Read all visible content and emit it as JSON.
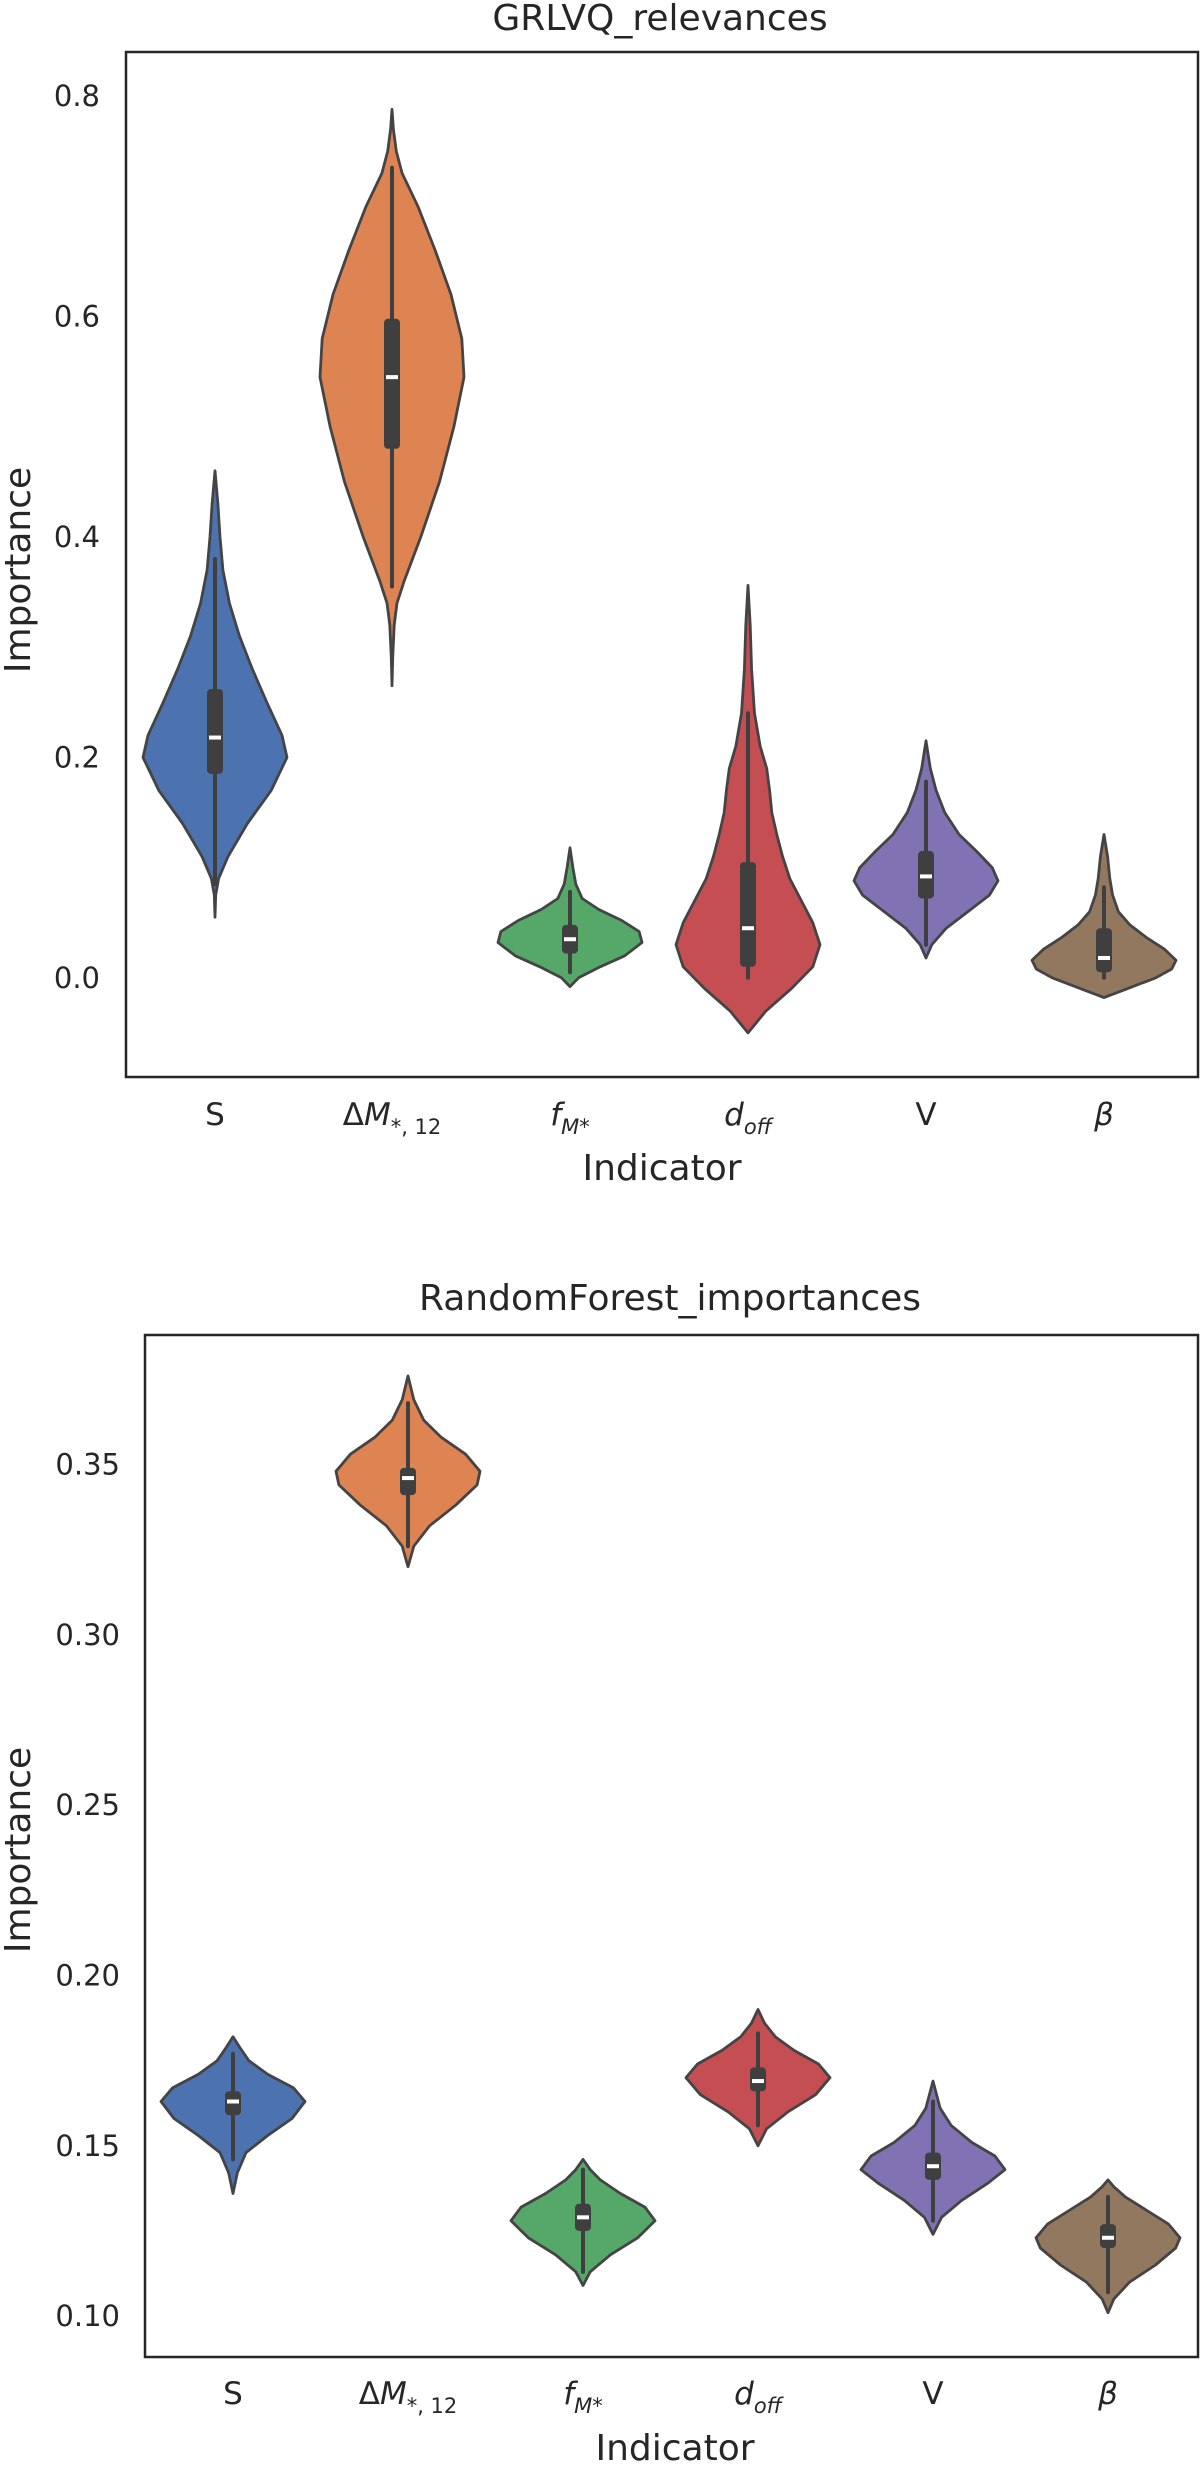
{
  "chart_data": [
    {
      "type": "violin",
      "title": "GRLVQ_relevances",
      "xlabel": "Indicator",
      "ylabel": "Importance",
      "ylim": [
        -0.09,
        0.84
      ],
      "yticks": [
        0.0,
        0.2,
        0.4,
        0.6,
        0.8
      ],
      "ytick_labels": [
        "0.0",
        "0.2",
        "0.4",
        "0.6",
        "0.8"
      ],
      "categories": [
        {
          "label": "S",
          "sub": "",
          "color": "#4c72b0",
          "kde_min": 0.055,
          "kde_max": 0.46,
          "shape": [
            [
              0.055,
              0
            ],
            [
              0.075,
              0.01
            ],
            [
              0.09,
              0.05
            ],
            [
              0.11,
              0.18
            ],
            [
              0.14,
              0.45
            ],
            [
              0.17,
              0.78
            ],
            [
              0.2,
              1.0
            ],
            [
              0.22,
              0.93
            ],
            [
              0.25,
              0.72
            ],
            [
              0.28,
              0.52
            ],
            [
              0.31,
              0.34
            ],
            [
              0.34,
              0.2
            ],
            [
              0.37,
              0.11
            ],
            [
              0.4,
              0.07
            ],
            [
              0.43,
              0.04
            ],
            [
              0.46,
              0
            ]
          ],
          "whisker": [
            0.085,
            0.38
          ],
          "q1": 0.185,
          "median": 0.218,
          "q3": 0.262
        },
        {
          "label": "ΔM",
          "sub": "*, 12",
          "color": "#dd8452",
          "kde_min": 0.265,
          "kde_max": 0.788,
          "shape": [
            [
              0.265,
              0
            ],
            [
              0.29,
              0.01
            ],
            [
              0.32,
              0.03
            ],
            [
              0.34,
              0.07
            ],
            [
              0.36,
              0.17
            ],
            [
              0.4,
              0.4
            ],
            [
              0.45,
              0.66
            ],
            [
              0.5,
              0.86
            ],
            [
              0.545,
              1.0
            ],
            [
              0.58,
              0.97
            ],
            [
              0.62,
              0.82
            ],
            [
              0.66,
              0.6
            ],
            [
              0.7,
              0.36
            ],
            [
              0.73,
              0.14
            ],
            [
              0.75,
              0.06
            ],
            [
              0.77,
              0.02
            ],
            [
              0.788,
              0
            ]
          ],
          "whisker": [
            0.355,
            0.735
          ],
          "q1": 0.48,
          "median": 0.545,
          "q3": 0.598
        },
        {
          "label": "f",
          "sub": "M*",
          "color": "#55a868",
          "kde_min": -0.008,
          "kde_max": 0.118,
          "shape": [
            [
              -0.008,
              0
            ],
            [
              0.0,
              0.12
            ],
            [
              0.01,
              0.42
            ],
            [
              0.02,
              0.76
            ],
            [
              0.032,
              1.0
            ],
            [
              0.042,
              0.96
            ],
            [
              0.052,
              0.72
            ],
            [
              0.062,
              0.4
            ],
            [
              0.072,
              0.17
            ],
            [
              0.085,
              0.08
            ],
            [
              0.1,
              0.04
            ],
            [
              0.118,
              0
            ]
          ],
          "whisker": [
            0.005,
            0.078
          ],
          "q1": 0.022,
          "median": 0.035,
          "q3": 0.048
        },
        {
          "label": "d",
          "sub": "off",
          "color": "#c44e52",
          "kde_min": -0.05,
          "kde_max": 0.356,
          "shape": [
            [
              -0.05,
              0
            ],
            [
              -0.03,
              0.25
            ],
            [
              -0.01,
              0.6
            ],
            [
              0.01,
              0.9
            ],
            [
              0.03,
              1.0
            ],
            [
              0.05,
              0.9
            ],
            [
              0.07,
              0.74
            ],
            [
              0.09,
              0.58
            ],
            [
              0.11,
              0.48
            ],
            [
              0.13,
              0.4
            ],
            [
              0.15,
              0.33
            ],
            [
              0.17,
              0.3
            ],
            [
              0.19,
              0.26
            ],
            [
              0.21,
              0.17
            ],
            [
              0.24,
              0.09
            ],
            [
              0.28,
              0.05
            ],
            [
              0.32,
              0.03
            ],
            [
              0.356,
              0
            ]
          ],
          "whisker": [
            0.0,
            0.24
          ],
          "q1": 0.01,
          "median": 0.045,
          "q3": 0.105
        },
        {
          "label": "V",
          "sub": "",
          "color": "#8172b3",
          "kde_min": 0.018,
          "kde_max": 0.215,
          "shape": [
            [
              0.018,
              0
            ],
            [
              0.03,
              0.08
            ],
            [
              0.045,
              0.28
            ],
            [
              0.06,
              0.58
            ],
            [
              0.075,
              0.88
            ],
            [
              0.088,
              1.0
            ],
            [
              0.1,
              0.92
            ],
            [
              0.115,
              0.7
            ],
            [
              0.13,
              0.46
            ],
            [
              0.15,
              0.26
            ],
            [
              0.17,
              0.14
            ],
            [
              0.19,
              0.06
            ],
            [
              0.215,
              0
            ]
          ],
          "whisker": [
            0.03,
            0.178
          ],
          "q1": 0.072,
          "median": 0.092,
          "q3": 0.115
        },
        {
          "label": "β",
          "sub": "",
          "color": "#937860",
          "kde_min": -0.018,
          "kde_max": 0.13,
          "shape": [
            [
              -0.018,
              0
            ],
            [
              -0.01,
              0.32
            ],
            [
              0.0,
              0.72
            ],
            [
              0.008,
              0.94
            ],
            [
              0.016,
              1.0
            ],
            [
              0.026,
              0.84
            ],
            [
              0.036,
              0.6
            ],
            [
              0.048,
              0.36
            ],
            [
              0.06,
              0.2
            ],
            [
              0.075,
              0.12
            ],
            [
              0.09,
              0.08
            ],
            [
              0.11,
              0.05
            ],
            [
              0.13,
              0
            ]
          ],
          "whisker": [
            0.0,
            0.082
          ],
          "q1": 0.005,
          "median": 0.018,
          "q3": 0.045
        }
      ]
    },
    {
      "type": "violin",
      "title": "RandomForest_importances",
      "xlabel": "Indicator",
      "ylabel": "Importance",
      "ylim": [
        0.088,
        0.388
      ],
      "yticks": [
        0.1,
        0.15,
        0.2,
        0.25,
        0.3,
        0.35
      ],
      "ytick_labels": [
        "0.10",
        "0.15",
        "0.20",
        "0.25",
        "0.30",
        "0.35"
      ],
      "categories": [
        {
          "label": "S",
          "sub": "",
          "color": "#4c72b0",
          "kde_min": 0.136,
          "kde_max": 0.182,
          "shape": [
            [
              0.136,
              0
            ],
            [
              0.142,
              0.06
            ],
            [
              0.148,
              0.18
            ],
            [
              0.153,
              0.48
            ],
            [
              0.158,
              0.82
            ],
            [
              0.163,
              1.0
            ],
            [
              0.167,
              0.84
            ],
            [
              0.171,
              0.48
            ],
            [
              0.175,
              0.22
            ],
            [
              0.179,
              0.09
            ],
            [
              0.182,
              0
            ]
          ],
          "whisker": [
            0.146,
            0.177
          ],
          "q1": 0.159,
          "median": 0.163,
          "q3": 0.166
        },
        {
          "label": "ΔM",
          "sub": "*, 12",
          "color": "#dd8452",
          "kde_min": 0.32,
          "kde_max": 0.376,
          "shape": [
            [
              0.32,
              0
            ],
            [
              0.326,
              0.08
            ],
            [
              0.332,
              0.3
            ],
            [
              0.338,
              0.66
            ],
            [
              0.344,
              0.96
            ],
            [
              0.348,
              1.0
            ],
            [
              0.353,
              0.8
            ],
            [
              0.358,
              0.46
            ],
            [
              0.363,
              0.22
            ],
            [
              0.369,
              0.08
            ],
            [
              0.376,
              0
            ]
          ],
          "whisker": [
            0.326,
            0.368
          ],
          "q1": 0.341,
          "median": 0.346,
          "q3": 0.349
        },
        {
          "label": "f",
          "sub": "M*",
          "color": "#55a868",
          "kde_min": 0.109,
          "kde_max": 0.146,
          "shape": [
            [
              0.109,
              0
            ],
            [
              0.113,
              0.1
            ],
            [
              0.118,
              0.38
            ],
            [
              0.123,
              0.76
            ],
            [
              0.128,
              1.0
            ],
            [
              0.132,
              0.86
            ],
            [
              0.136,
              0.52
            ],
            [
              0.14,
              0.24
            ],
            [
              0.143,
              0.1
            ],
            [
              0.146,
              0
            ]
          ],
          "whisker": [
            0.113,
            0.143
          ],
          "q1": 0.125,
          "median": 0.129,
          "q3": 0.133
        },
        {
          "label": "d",
          "sub": "off",
          "color": "#c44e52",
          "kde_min": 0.15,
          "kde_max": 0.19,
          "shape": [
            [
              0.15,
              0
            ],
            [
              0.155,
              0.12
            ],
            [
              0.16,
              0.42
            ],
            [
              0.165,
              0.8
            ],
            [
              0.17,
              1.0
            ],
            [
              0.174,
              0.84
            ],
            [
              0.178,
              0.5
            ],
            [
              0.182,
              0.24
            ],
            [
              0.186,
              0.09
            ],
            [
              0.19,
              0
            ]
          ],
          "whisker": [
            0.156,
            0.183
          ],
          "q1": 0.166,
          "median": 0.169,
          "q3": 0.173
        },
        {
          "label": "V",
          "sub": "",
          "color": "#8172b3",
          "kde_min": 0.124,
          "kde_max": 0.169,
          "shape": [
            [
              0.124,
              0
            ],
            [
              0.129,
              0.12
            ],
            [
              0.134,
              0.4
            ],
            [
              0.139,
              0.76
            ],
            [
              0.143,
              1.0
            ],
            [
              0.147,
              0.86
            ],
            [
              0.151,
              0.54
            ],
            [
              0.156,
              0.25
            ],
            [
              0.161,
              0.1
            ],
            [
              0.169,
              0
            ]
          ],
          "whisker": [
            0.128,
            0.163
          ],
          "q1": 0.14,
          "median": 0.144,
          "q3": 0.148
        },
        {
          "label": "β",
          "sub": "",
          "color": "#937860",
          "kde_min": 0.101,
          "kde_max": 0.14,
          "shape": [
            [
              0.101,
              0
            ],
            [
              0.105,
              0.08
            ],
            [
              0.11,
              0.3
            ],
            [
              0.115,
              0.66
            ],
            [
              0.12,
              0.94
            ],
            [
              0.123,
              1.0
            ],
            [
              0.127,
              0.84
            ],
            [
              0.131,
              0.54
            ],
            [
              0.135,
              0.24
            ],
            [
              0.138,
              0.08
            ],
            [
              0.14,
              0
            ]
          ],
          "whisker": [
            0.107,
            0.135
          ],
          "q1": 0.12,
          "median": 0.123,
          "q3": 0.127
        }
      ]
    }
  ]
}
